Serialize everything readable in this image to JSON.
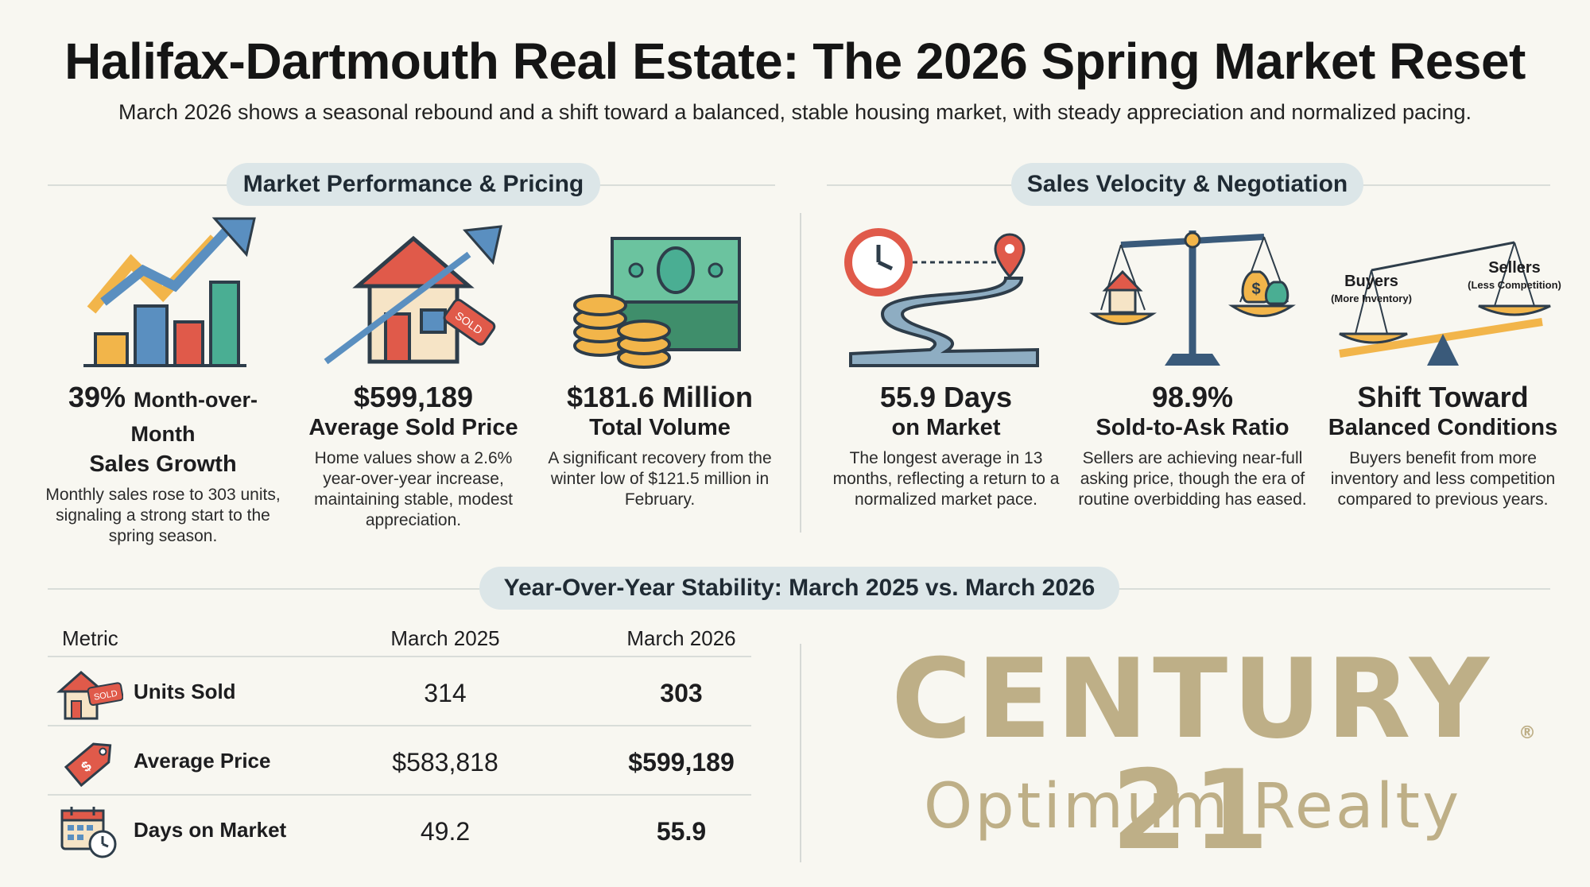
{
  "header": {
    "title": "Halifax-Dartmouth Real Estate: The 2026 Spring Market Reset",
    "subtitle": "March 2026 shows a seasonal rebound and a shift toward a balanced, stable housing market, with steady appreciation and normalized pacing."
  },
  "sections": {
    "left": "Market Performance & Pricing",
    "right": "Sales Velocity & Negotiation",
    "yoy": "Year-Over-Year Stability: March 2025 vs. March 2026"
  },
  "stats": [
    {
      "value": "39%",
      "value_suffix": "Month-over-Month",
      "label": "Sales Growth",
      "desc": "Monthly sales rose to 303 units, signaling a strong start to the spring season.",
      "icon": "growth-chart-icon"
    },
    {
      "value": "$599,189",
      "value_suffix": "",
      "label": "Average Sold Price",
      "desc": "Home values show a 2.6% year-over-year increase, maintaining stable, modest appreciation.",
      "icon": "house-sold-icon",
      "icon_tag": "SOLD"
    },
    {
      "value": "$181.6 Million",
      "value_suffix": "",
      "label": "Total Volume",
      "desc": "A significant recovery from the winter low of $121.5 million in February.",
      "icon": "money-stack-icon"
    },
    {
      "value": "55.9 Days",
      "value_suffix": "",
      "label": "on Market",
      "desc": "The longest average in 13 months, reflecting a return to a normalized market pace.",
      "icon": "clock-road-icon"
    },
    {
      "value": "98.9%",
      "value_suffix": "",
      "label": "Sold-to-Ask Ratio",
      "desc": "Sellers are achieving near-full asking price, though the era of routine overbidding has eased.",
      "icon": "balance-scale-icon"
    },
    {
      "value": "Shift Toward",
      "value_suffix": "",
      "label": "Balanced Conditions",
      "desc": "Buyers benefit from more inventory and less competition compared to previous years.",
      "icon": "seesaw-icon",
      "buyers": "Buyers",
      "buyers_note": "(More Inventory)",
      "sellers": "Sellers",
      "sellers_note": "(Less Competition)"
    }
  ],
  "table": {
    "headers": [
      "Metric",
      "March 2025",
      "March 2026"
    ],
    "rows": [
      {
        "metric": "Units Sold",
        "y2025": "314",
        "y2026": "303",
        "icon": "house-sold-icon",
        "tag": "SOLD"
      },
      {
        "metric": "Average Price",
        "y2025": "$583,818",
        "y2026": "$599,189",
        "icon": "price-tag-icon"
      },
      {
        "metric": "Days on Market",
        "y2025": "49.2",
        "y2026": "55.9",
        "icon": "calendar-clock-icon"
      }
    ]
  },
  "brand": {
    "name": "CENTURY 21",
    "reg": "®",
    "office": "Optimum Realty",
    "color": "#beaf87"
  }
}
